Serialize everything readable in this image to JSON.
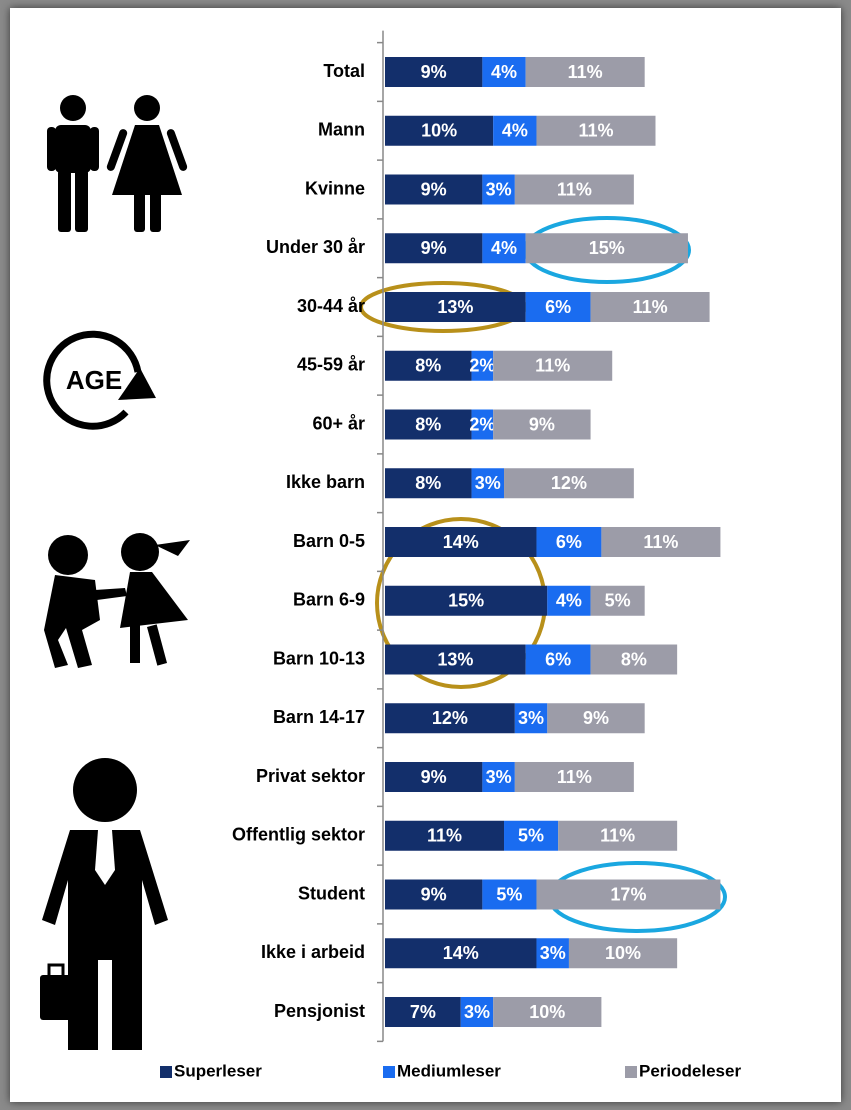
{
  "chart_data": {
    "type": "stacked_bar_horizontal",
    "categories": [
      "Total",
      "Mann",
      "Kvinne",
      "Under 30 år",
      "30-44 år",
      "45-59 år",
      "60+ år",
      "Ikke barn",
      "Barn 0-5",
      "Barn 6-9",
      "Barn 10-13",
      "Barn 14-17",
      "Privat sektor",
      "Offentlig sektor",
      "Student",
      "Ikke i arbeid",
      "Pensjonist"
    ],
    "series": [
      {
        "name": "Superleser",
        "color": "#132f6b",
        "values": [
          9,
          10,
          9,
          9,
          13,
          8,
          8,
          8,
          14,
          15,
          13,
          12,
          9,
          11,
          9,
          14,
          7
        ],
        "value_labels": [
          "9%",
          "10%",
          "9%",
          "9%",
          "13%",
          "8%",
          "8%",
          "8%",
          "14%",
          "15%",
          "13%",
          "12%",
          "9%",
          "11%",
          "9%",
          "14%",
          "7%"
        ]
      },
      {
        "name": "Mediumleser",
        "color": "#1a6cf0",
        "values": [
          4,
          4,
          3,
          4,
          6,
          2,
          2,
          3,
          6,
          4,
          6,
          3,
          3,
          5,
          5,
          3,
          3
        ],
        "value_labels": [
          "4%",
          "4%",
          "3%",
          "4%",
          "6%",
          "2%",
          "2%",
          "3%",
          "6%",
          "4%",
          "6%",
          "3%",
          "3%",
          "5%",
          "5%",
          "3%",
          "3%"
        ]
      },
      {
        "name": "Periodeleser",
        "color": "#9c9ca8",
        "values": [
          11,
          11,
          11,
          15,
          11,
          11,
          9,
          12,
          11,
          5,
          8,
          9,
          11,
          11,
          17,
          10,
          10
        ],
        "value_labels": [
          "11%",
          "11%",
          "11%",
          "15%",
          "11%",
          "11%",
          "9%",
          "12%",
          "11%",
          "5%",
          "8%",
          "9%",
          "11%",
          "11%",
          "17%",
          "10%",
          "10%"
        ]
      }
    ],
    "age_icon_label": "AGE",
    "legend": "bottom"
  }
}
